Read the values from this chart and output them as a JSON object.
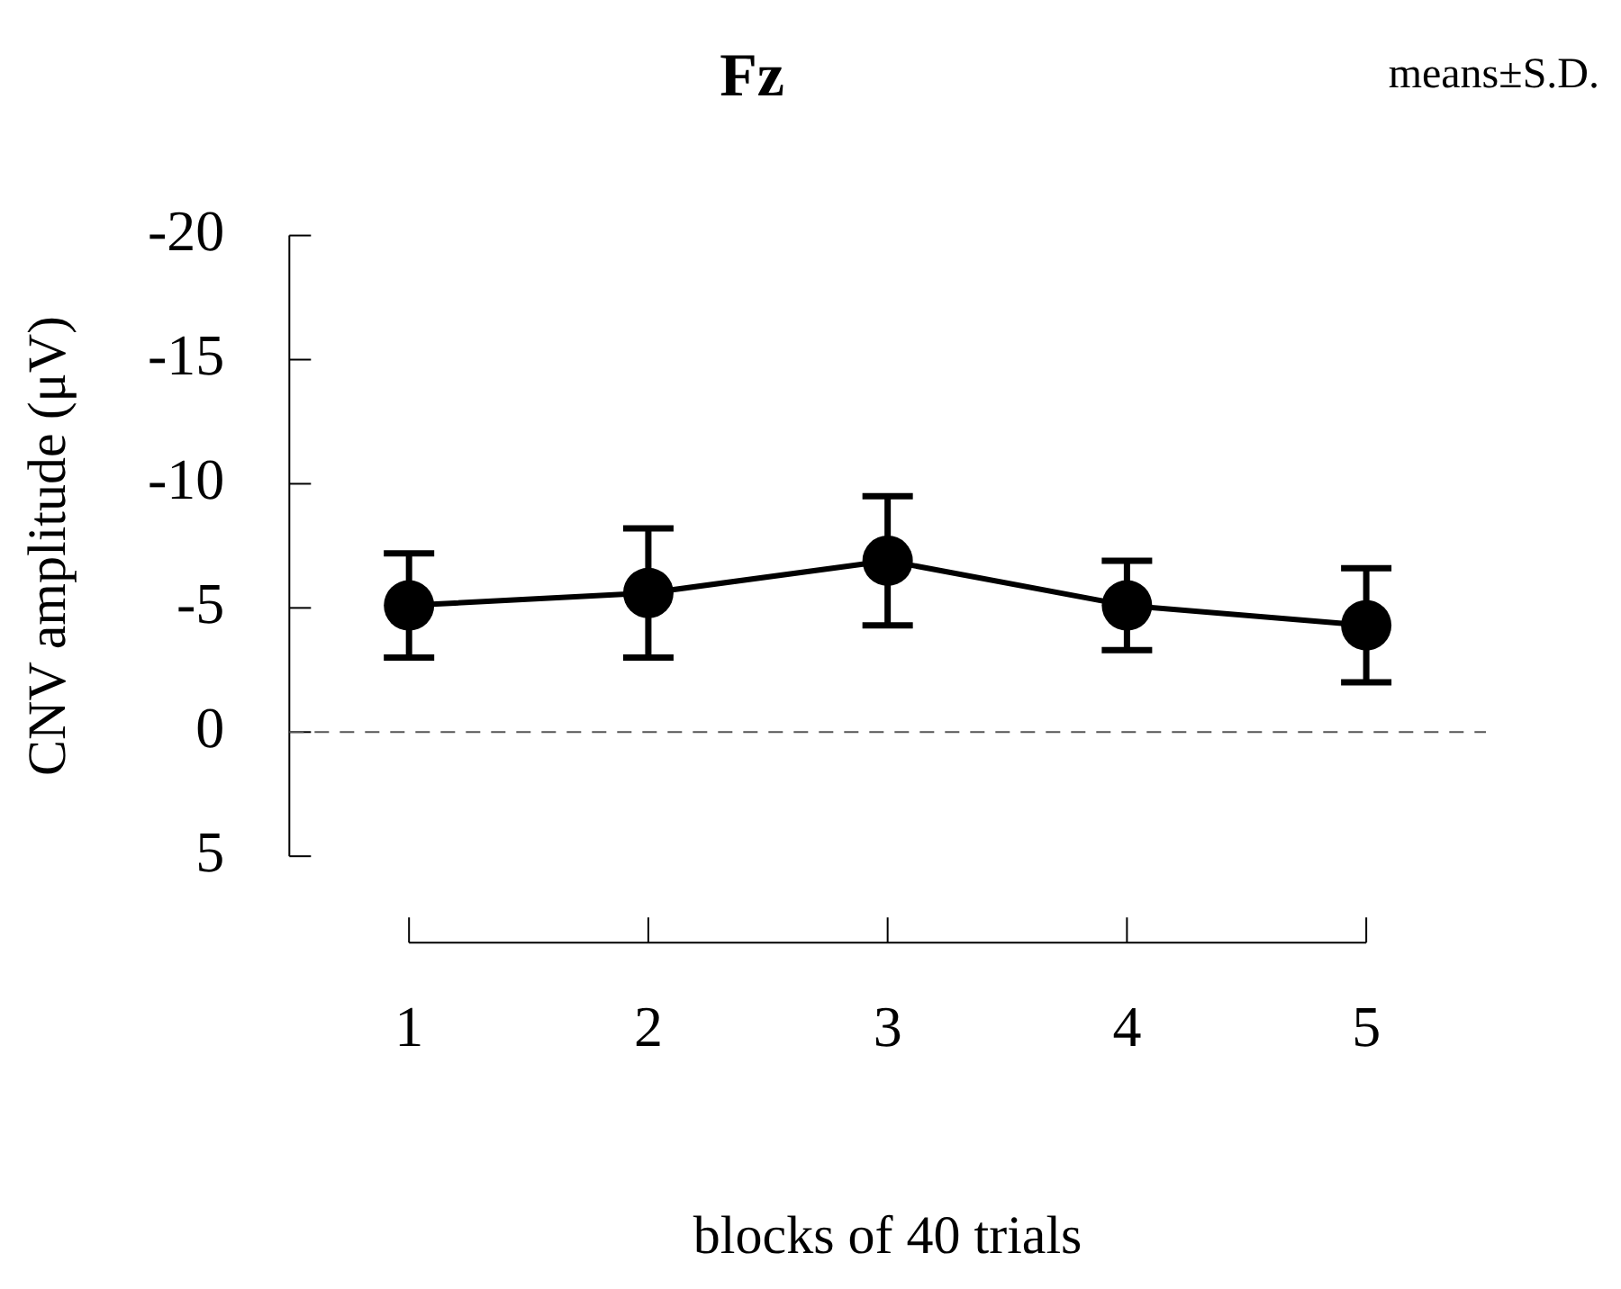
{
  "chart_data": {
    "type": "line",
    "title": "Fz",
    "annotations": [
      "means±S.D."
    ],
    "xlabel": "blocks of 40 trials",
    "ylabel": "CNV amplitude (μV)",
    "categories": [
      "1",
      "2",
      "3",
      "4",
      "5"
    ],
    "series": [
      {
        "color": "#000000",
        "values": [
          -5.1,
          -5.6,
          -6.9,
          -5.1,
          -4.3
        ],
        "errors": [
          2.1,
          2.6,
          2.6,
          1.8,
          2.3
        ]
      }
    ],
    "ylim": [
      5,
      -20
    ],
    "yticks": [
      -20,
      -15,
      -10,
      -5,
      0,
      5
    ],
    "ref_lines": [
      {
        "axis": "y",
        "value": 0,
        "line_style": "dashed",
        "color": "#555555"
      }
    ],
    "marker": "circle",
    "line_style": "solid",
    "grid": false,
    "legend": false
  }
}
